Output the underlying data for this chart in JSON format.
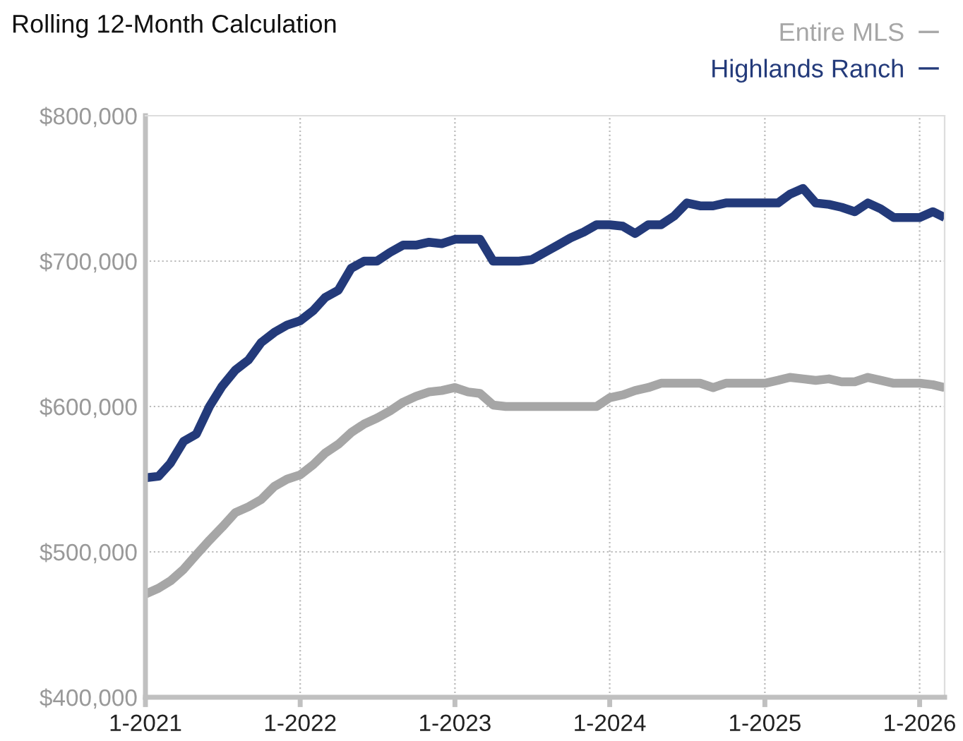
{
  "chart_data": {
    "type": "line",
    "title": "Rolling 12-Month Calculation",
    "x": [
      "2021-01",
      "2021-02",
      "2021-03",
      "2021-04",
      "2021-05",
      "2021-06",
      "2021-07",
      "2021-08",
      "2021-09",
      "2021-10",
      "2021-11",
      "2021-12",
      "2022-01",
      "2022-02",
      "2022-03",
      "2022-04",
      "2022-05",
      "2022-06",
      "2022-07",
      "2022-08",
      "2022-09",
      "2022-10",
      "2022-11",
      "2022-12",
      "2023-01",
      "2023-02",
      "2023-03",
      "2023-04",
      "2023-05",
      "2023-06",
      "2023-07",
      "2023-08",
      "2023-09",
      "2023-10",
      "2023-11",
      "2023-12",
      "2024-01",
      "2024-02",
      "2024-03",
      "2024-04",
      "2024-05",
      "2024-06",
      "2024-07",
      "2024-08",
      "2024-09",
      "2024-10",
      "2024-11",
      "2024-12",
      "2025-01",
      "2025-02",
      "2025-03",
      "2025-04",
      "2025-05",
      "2025-06",
      "2025-07",
      "2025-08",
      "2025-09",
      "2025-10",
      "2025-11",
      "2025-12",
      "2026-01",
      "2026-02",
      "2026-03"
    ],
    "series": [
      {
        "name": "Entire MLS",
        "color": "#a6a6a6",
        "values": [
          471000,
          475000,
          480000,
          488000,
          498000,
          508000,
          517000,
          527000,
          531000,
          536000,
          545000,
          550000,
          553000,
          560000,
          568000,
          574000,
          582000,
          588000,
          592000,
          597000,
          603000,
          607000,
          610000,
          611000,
          613000,
          610000,
          609000,
          601000,
          600000,
          600000,
          600000,
          600000,
          600000,
          600000,
          600000,
          600000,
          606000,
          608000,
          611000,
          613000,
          616000,
          616000,
          616000,
          616000,
          613000,
          616000,
          616000,
          616000,
          616000,
          618000,
          620000,
          619000,
          618000,
          619000,
          617000,
          617000,
          620000,
          618000,
          616000,
          616000,
          616000,
          615000,
          613000
        ]
      },
      {
        "name": "Highlands Ranch",
        "color": "#233a7a",
        "values": [
          551000,
          552000,
          561000,
          576000,
          581000,
          600000,
          614000,
          625000,
          632000,
          644000,
          651000,
          656000,
          659000,
          666000,
          675000,
          680000,
          695000,
          700000,
          700000,
          706000,
          711000,
          711000,
          713000,
          712000,
          715000,
          715000,
          715000,
          700000,
          700000,
          700000,
          701000,
          706000,
          711000,
          716000,
          720000,
          725000,
          725000,
          724000,
          719000,
          725000,
          725000,
          731000,
          740000,
          738000,
          738000,
          740000,
          740000,
          740000,
          740000,
          740000,
          746000,
          750000,
          740000,
          739000,
          737000,
          734000,
          740000,
          736000,
          730000,
          730000,
          730000,
          734000,
          730000
        ]
      }
    ],
    "xlim": [
      "2021-01",
      "2026-03"
    ],
    "xticks": [
      {
        "value": "2021-01",
        "label": "1-2021"
      },
      {
        "value": "2022-01",
        "label": "1-2022"
      },
      {
        "value": "2023-01",
        "label": "1-2023"
      },
      {
        "value": "2024-01",
        "label": "1-2024"
      },
      {
        "value": "2025-01",
        "label": "1-2025"
      },
      {
        "value": "2026-01",
        "label": "1-2026"
      }
    ],
    "ylim": [
      400000,
      800000
    ],
    "yticks": [
      {
        "value": 400000,
        "label": "$400,000"
      },
      {
        "value": 500000,
        "label": "$500,000"
      },
      {
        "value": 600000,
        "label": "$600,000"
      },
      {
        "value": 700000,
        "label": "$700,000"
      },
      {
        "value": 800000,
        "label": "$800,000"
      }
    ],
    "grid": true,
    "legend": "top right",
    "marker": "none",
    "line_style": "solid"
  }
}
